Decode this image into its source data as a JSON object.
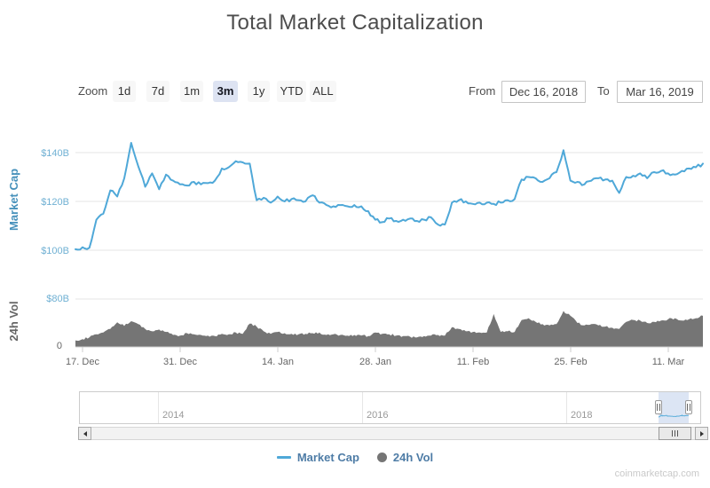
{
  "header": {
    "title": "Total Market Capitalization"
  },
  "range_selector": {
    "zoom_label": "Zoom",
    "buttons": [
      {
        "label": "1d",
        "selected": false
      },
      {
        "label": "7d",
        "selected": false
      },
      {
        "label": "1m",
        "selected": false
      },
      {
        "label": "3m",
        "selected": true
      },
      {
        "label": "1y",
        "selected": false
      },
      {
        "label": "YTD",
        "selected": false
      },
      {
        "label": "ALL",
        "selected": false
      }
    ],
    "from_label": "From",
    "from_value": "Dec 16, 2018",
    "to_label": "To",
    "to_value": "Mar 16, 2019"
  },
  "axes": {
    "market_cap": {
      "title": "Market Cap",
      "ticks": [
        "$140B",
        "$120B",
        "$100B"
      ]
    },
    "volume": {
      "title": "24h Vol",
      "ticks": [
        "$80B",
        "0"
      ]
    },
    "x_labels": [
      "17. Dec",
      "31. Dec",
      "14. Jan",
      "28. Jan",
      "11. Feb",
      "25. Feb",
      "11. Mar"
    ]
  },
  "navigator": {
    "years": [
      "2014",
      "2016",
      "2018"
    ]
  },
  "legend": [
    {
      "label": "Market Cap",
      "marker": "line",
      "color": "#4FA8D8"
    },
    {
      "label": "24h Vol",
      "marker": "circle",
      "color": "#757575"
    }
  ],
  "watermark": "coinmarketcap.com",
  "colors": {
    "market_cap_line": "#4FA8D8",
    "volume_fill": "#757575",
    "mcap_axis_text": "#6fb0d3",
    "gridline": "#e6e6e6"
  },
  "chart_data": [
    {
      "type": "line",
      "name": "Market Cap",
      "title": "Total Market Capitalization",
      "unit": "USD billions",
      "color": "#4FA8D8",
      "x_start": "Dec 16, 2018",
      "x_end": "Mar 16, 2019",
      "frequency": "daily",
      "xlabel": "",
      "ylabel": "Market Cap",
      "ylim": [
        95,
        148
      ],
      "ytick_values": [
        100,
        120,
        140
      ],
      "grid": true,
      "legend_position": "bottom",
      "values": [
        100.4,
        101.2,
        101.0,
        112.5,
        115.0,
        124.5,
        122.0,
        129.5,
        144.0,
        134.5,
        126.0,
        131.5,
        125.0,
        131.0,
        128.5,
        127.0,
        126.5,
        128.0,
        127.0,
        127.5,
        128.5,
        133.5,
        134.0,
        136.5,
        136.0,
        135.5,
        120.5,
        121.5,
        119.5,
        122.0,
        120.0,
        121.0,
        120.5,
        120.0,
        122.5,
        119.5,
        118.5,
        118.0,
        118.5,
        118.0,
        118.5,
        118.0,
        116.0,
        112.5,
        111.5,
        113.0,
        112.0,
        112.5,
        113.0,
        112.0,
        112.5,
        113.5,
        110.5,
        110.5,
        119.5,
        120.5,
        120.0,
        119.0,
        119.5,
        119.5,
        119.0,
        119.5,
        120.5,
        121.0,
        129.0,
        130.0,
        129.5,
        128.0,
        129.5,
        132.0,
        141.0,
        128.5,
        128.0,
        127.0,
        128.5,
        129.5,
        129.0,
        128.5,
        123.5,
        130.0,
        130.5,
        131.5,
        129.5,
        132.0,
        132.5,
        131.5,
        131.0,
        132.5,
        133.5,
        134.0,
        135.5
      ]
    },
    {
      "type": "area",
      "name": "24h Vol",
      "unit": "USD billions",
      "color": "#757575",
      "x_start": "Dec 16, 2018",
      "x_end": "Mar 16, 2019",
      "frequency": "daily",
      "xlabel": "",
      "ylabel": "24h Vol",
      "ylim": [
        0,
        80
      ],
      "ytick_values": [
        0,
        80
      ],
      "grid": true,
      "values": [
        11,
        13,
        16,
        21,
        24,
        30,
        41,
        35,
        43,
        38,
        30,
        26,
        29,
        25,
        20,
        19,
        23,
        21,
        20,
        19,
        18,
        22,
        21,
        24,
        22,
        39,
        34,
        26,
        22,
        25,
        23,
        22,
        21,
        22,
        23,
        24,
        20,
        21,
        20,
        19,
        20,
        19,
        18,
        24,
        22,
        21,
        19,
        18,
        17,
        16,
        18,
        19,
        20,
        19,
        33,
        30,
        26,
        25,
        24,
        24,
        55,
        25,
        26,
        25,
        45,
        48,
        42,
        38,
        36,
        38,
        60,
        52,
        40,
        36,
        38,
        36,
        34,
        32,
        30,
        42,
        45,
        44,
        40,
        42,
        44,
        46,
        48,
        44,
        46,
        48,
        52
      ]
    }
  ]
}
